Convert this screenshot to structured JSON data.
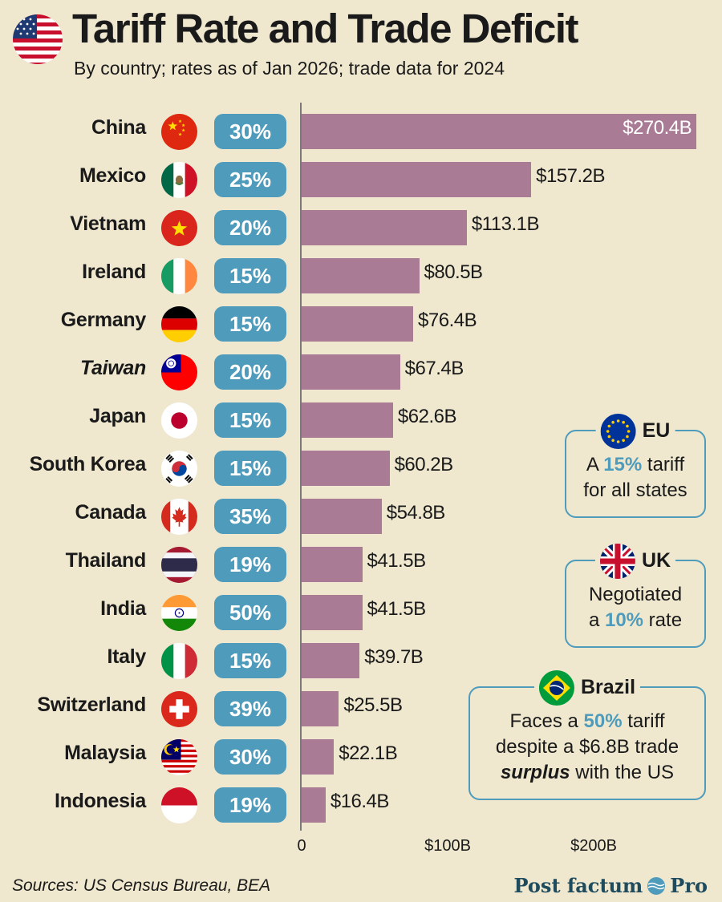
{
  "header": {
    "title": "Tariff Rate and Trade Deficit",
    "subtitle": "By country; rates as of Jan 2026; trade data for 2024"
  },
  "chart_data": {
    "type": "bar",
    "orientation": "horizontal",
    "title": "Tariff Rate and Trade Deficit",
    "subtitle": "By country; rates as of Jan 2026; trade data for 2024",
    "xlim": [
      0,
      275
    ],
    "x_ticks": [
      {
        "value": 0,
        "label": "0"
      },
      {
        "value": 100,
        "label": "$100B"
      },
      {
        "value": 200,
        "label": "$200B"
      }
    ],
    "bar_color": "#a97b94",
    "rate_color": "#4e9bbb",
    "rows": [
      {
        "country": "China",
        "flag": "china-flag-icon",
        "rate": "30%",
        "deficit": 270.4,
        "label": "$270.4B"
      },
      {
        "country": "Mexico",
        "flag": "mexico-flag-icon",
        "rate": "25%",
        "deficit": 157.2,
        "label": "$157.2B"
      },
      {
        "country": "Vietnam",
        "flag": "vietnam-flag-icon",
        "rate": "20%",
        "deficit": 113.1,
        "label": "$113.1B"
      },
      {
        "country": "Ireland",
        "flag": "ireland-flag-icon",
        "rate": "15%",
        "deficit": 80.5,
        "label": "$80.5B"
      },
      {
        "country": "Germany",
        "flag": "germany-flag-icon",
        "rate": "15%",
        "deficit": 76.4,
        "label": "$76.4B"
      },
      {
        "country": "Taiwan",
        "flag": "taiwan-flag-icon",
        "rate": "20%",
        "deficit": 67.4,
        "label": "$67.4B",
        "italic": true
      },
      {
        "country": "Japan",
        "flag": "japan-flag-icon",
        "rate": "15%",
        "deficit": 62.6,
        "label": "$62.6B"
      },
      {
        "country": "South Korea",
        "flag": "south-korea-flag-icon",
        "rate": "15%",
        "deficit": 60.2,
        "label": "$60.2B"
      },
      {
        "country": "Canada",
        "flag": "canada-flag-icon",
        "rate": "35%",
        "deficit": 54.8,
        "label": "$54.8B"
      },
      {
        "country": "Thailand",
        "flag": "thailand-flag-icon",
        "rate": "19%",
        "deficit": 41.5,
        "label": "$41.5B"
      },
      {
        "country": "India",
        "flag": "india-flag-icon",
        "rate": "50%",
        "deficit": 41.5,
        "label": "$41.5B"
      },
      {
        "country": "Italy",
        "flag": "italy-flag-icon",
        "rate": "15%",
        "deficit": 39.7,
        "label": "$39.7B"
      },
      {
        "country": "Switzerland",
        "flag": "switzerland-flag-icon",
        "rate": "39%",
        "deficit": 25.5,
        "label": "$25.5B"
      },
      {
        "country": "Malaysia",
        "flag": "malaysia-flag-icon",
        "rate": "30%",
        "deficit": 22.1,
        "label": "$22.1B"
      },
      {
        "country": "Indonesia",
        "flag": "indonesia-flag-icon",
        "rate": "19%",
        "deficit": 16.4,
        "label": "$16.4B"
      }
    ]
  },
  "callouts": {
    "eu": {
      "name": "EU",
      "pre": "A ",
      "highlight": "15%",
      "post1": " tariff",
      "line2": "for all states"
    },
    "uk": {
      "name": "UK",
      "line1": "Negotiated",
      "pre2": "a ",
      "highlight": "10%",
      "post2": " rate"
    },
    "brazil": {
      "name": "Brazil",
      "pre1": "Faces a ",
      "highlight": "50%",
      "post1": " tariff",
      "line2": "despite a $6.8B trade",
      "emph": "surplus",
      "post3": " with the US"
    }
  },
  "footer": {
    "source": "Sources: US Census Bureau, BEA",
    "brand_left": "Post factum",
    "brand_right": "Pro"
  }
}
